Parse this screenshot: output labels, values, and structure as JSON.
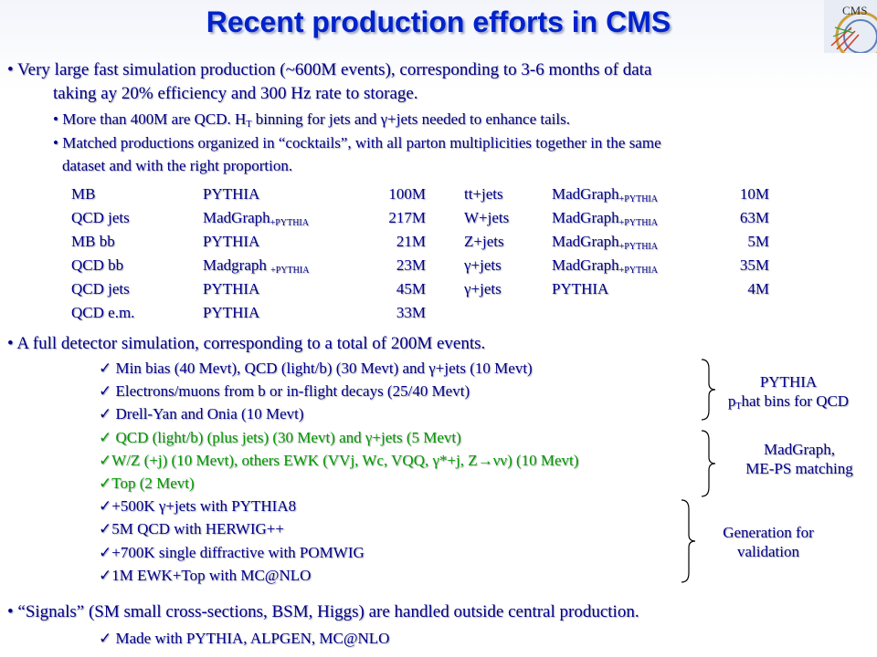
{
  "title": "Recent production efforts in CMS",
  "logo_text": "CMS",
  "b1": {
    "line1": "• Very large fast simulation production (~600M events), corresponding to 3-6 months of data",
    "line2": "taking ay 20% efficiency and 300 Hz rate to storage.",
    "s1_a": "• More than 400M are QCD. H",
    "s1_sub": "T",
    "s1_b": " binning for jets and γ+jets needed to enhance tails.",
    "s2_line1": "• Matched productions organized in “cocktails”, with all parton multiplicities together in the same",
    "s2_line2": "dataset and with the right proportion."
  },
  "table_left": [
    {
      "name": "MB",
      "gen": "PYTHIA",
      "gen_sub": "",
      "count": "100M"
    },
    {
      "name": "QCD jets",
      "gen": "MadGraph",
      "gen_sub": "+PYTHIA",
      "count": "217M"
    },
    {
      "name": "MB bb",
      "gen": "PYTHIA",
      "gen_sub": "",
      "count": "21M"
    },
    {
      "name": "QCD bb",
      "gen": "Madgraph ",
      "gen_sub": "+PYTHIA",
      "count": "23M"
    },
    {
      "name": "QCD jets",
      "gen": "PYTHIA",
      "gen_sub": "",
      "count": "45M"
    },
    {
      "name": "QCD e.m.",
      "gen": "PYTHIA",
      "gen_sub": "",
      "count": "33M"
    }
  ],
  "table_right": [
    {
      "name": "tt+jets",
      "gen": "MadGraph",
      "gen_sub": "+PYTHIA",
      "count": "10M"
    },
    {
      "name": "W+jets",
      "gen": "MadGraph",
      "gen_sub": "+PYTHIA",
      "count": "63M"
    },
    {
      "name": "Z+jets",
      "gen": "MadGraph",
      "gen_sub": "+PYTHIA",
      "count": "5M"
    },
    {
      "name": "γ+jets",
      "gen": "MadGraph",
      "gen_sub": "+PYTHIA",
      "count": "35M"
    },
    {
      "name": "γ+jets",
      "gen": "PYTHIA",
      "gen_sub": "",
      "count": "4M"
    }
  ],
  "b2": {
    "line1": "• A full detector simulation, corresponding to a total of 200M events.",
    "items": [
      "Min bias (40 Mevt), QCD (light/b) (30 Mevt) and γ+jets (10 Mevt)",
      "Electrons/muons from b or in-flight decays (25/40 Mevt)",
      "Drell-Yan and Onia (10 Mevt)",
      "QCD (light/b) (plus jets) (30 Mevt) and γ+jets (5 Mevt)",
      "W/Z (+j) (10 Mevt), others EWK (VVj, Wc, VQQ, γ*+j, Z→νν) (10 Mevt)",
      "Top (2 Mevt)",
      "+500K γ+jets with PYTHIA8",
      "5M QCD with HERWIG++",
      "+700K single diffractive with POMWIG",
      "1M EWK+Top with MC@NLO"
    ],
    "check": "✓"
  },
  "notes": {
    "pythia_l1": "PYTHIA",
    "pythia_l2_a": "p",
    "pythia_l2_sub": "T",
    "pythia_l2_b": "hat bins for QCD",
    "madgraph_l1": "MadGraph,",
    "madgraph_l2": "ME-PS matching",
    "gen_l1": "Generation for",
    "gen_l2": "validation"
  },
  "b3": {
    "line1": "• “Signals” (SM small cross-sections, BSM, Higgs) are handled outside central production.",
    "item": "Made with PYTHIA, ALPGEN, MC@NLO"
  },
  "colors": {
    "title": "#0022cc",
    "text": "#00008b",
    "green": "#009900"
  }
}
